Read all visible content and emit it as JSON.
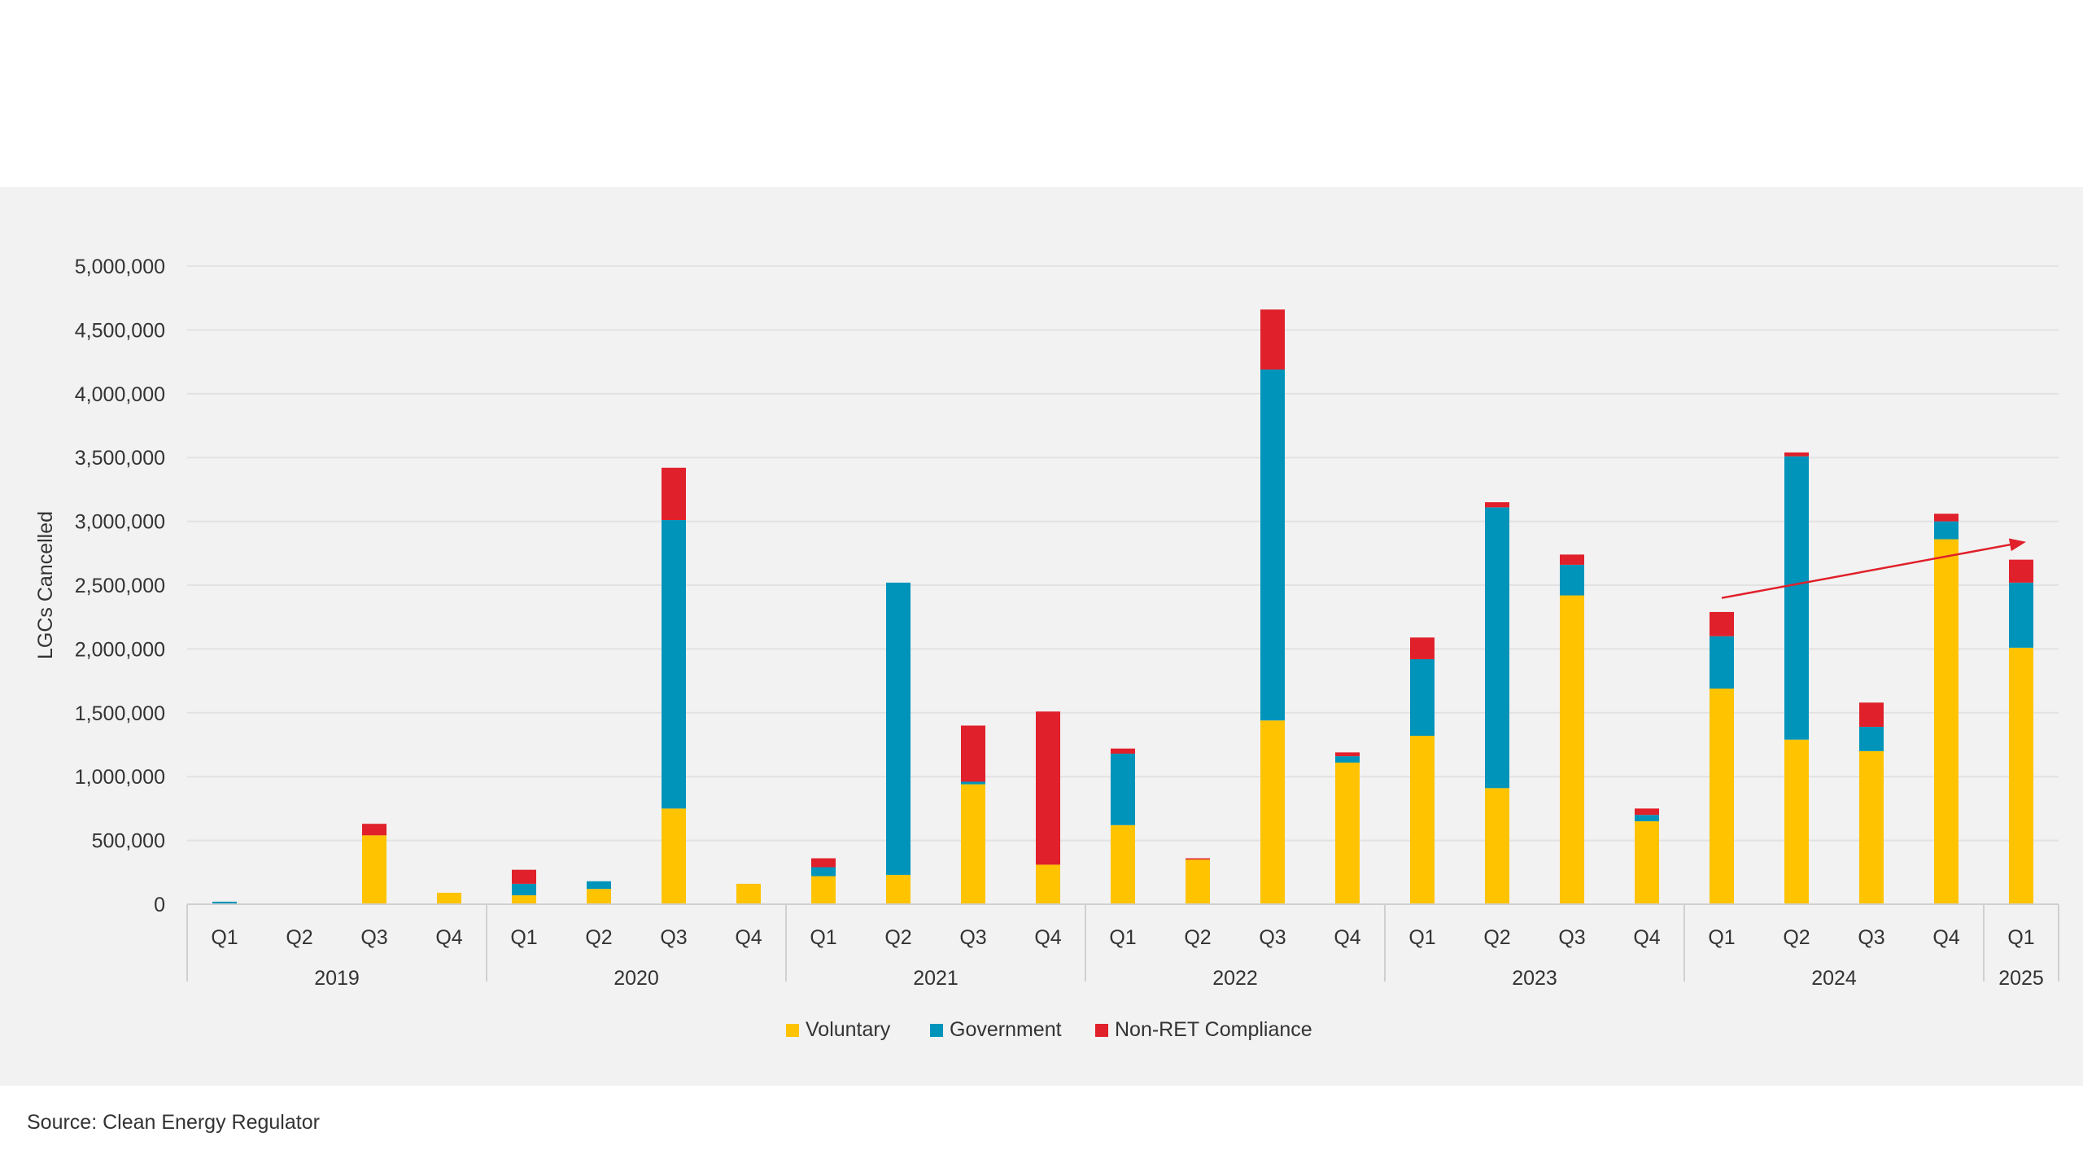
{
  "source": "Source: Clean Energy Regulator",
  "colors": {
    "voluntary": "#ffc300",
    "government": "#0094bb",
    "nonret": "#e0202a",
    "grid": "#e2e2e2",
    "axis": "#d0d0d0",
    "arrow": "#e0202a"
  },
  "chart_data": {
    "type": "bar",
    "stacked": true,
    "ylabel": "LGCs Cancelled",
    "ylim": [
      0,
      5000000
    ],
    "yticks": [
      0,
      500000,
      1000000,
      1500000,
      2000000,
      2500000,
      3000000,
      3500000,
      4000000,
      4500000,
      5000000
    ],
    "ytick_labels": [
      "0",
      "500,000",
      "1,000,000",
      "1,500,000",
      "2,000,000",
      "2,500,000",
      "3,000,000",
      "3,500,000",
      "4,000,000",
      "4,500,000",
      "5,000,000"
    ],
    "categories": [
      "Q1",
      "Q2",
      "Q3",
      "Q4",
      "Q1",
      "Q2",
      "Q3",
      "Q4",
      "Q1",
      "Q2",
      "Q3",
      "Q4",
      "Q1",
      "Q2",
      "Q3",
      "Q4",
      "Q1",
      "Q2",
      "Q3",
      "Q4",
      "Q1",
      "Q2",
      "Q3",
      "Q4",
      "Q1"
    ],
    "years": [
      {
        "label": "2019",
        "quarters": 4
      },
      {
        "label": "2020",
        "quarters": 4
      },
      {
        "label": "2021",
        "quarters": 4
      },
      {
        "label": "2022",
        "quarters": 4
      },
      {
        "label": "2023",
        "quarters": 4
      },
      {
        "label": "2024",
        "quarters": 4
      },
      {
        "label": "2025",
        "quarters": 1
      }
    ],
    "series": [
      {
        "name": "Voluntary",
        "color": "#ffc300",
        "values": [
          0,
          0,
          540000,
          90000,
          70000,
          120000,
          750000,
          160000,
          220000,
          230000,
          940000,
          310000,
          620000,
          350000,
          1440000,
          1110000,
          1320000,
          910000,
          2420000,
          650000,
          1690000,
          1290000,
          1200000,
          2860000,
          2010000
        ]
      },
      {
        "name": "Government",
        "color": "#0094bb",
        "values": [
          20000,
          0,
          0,
          0,
          90000,
          60000,
          2260000,
          0,
          70000,
          2290000,
          20000,
          0,
          560000,
          0,
          2750000,
          50000,
          600000,
          2200000,
          240000,
          50000,
          410000,
          2220000,
          190000,
          140000,
          510000
        ]
      },
      {
        "name": "Non-RET Compliance",
        "color": "#e0202a",
        "values": [
          0,
          0,
          90000,
          0,
          110000,
          0,
          410000,
          0,
          70000,
          0,
          440000,
          1200000,
          40000,
          10000,
          470000,
          30000,
          170000,
          40000,
          80000,
          50000,
          190000,
          30000,
          190000,
          60000,
          180000
        ]
      }
    ],
    "legend": {
      "position": "bottom",
      "entries": [
        "Voluntary",
        "Government",
        "Non-RET Compliance"
      ]
    },
    "grid": true,
    "annotations": [
      {
        "type": "trend-arrow",
        "from": {
          "category_index": 20,
          "y": 2400000
        },
        "to": {
          "category_index": 24,
          "y": 2840000
        }
      }
    ]
  }
}
